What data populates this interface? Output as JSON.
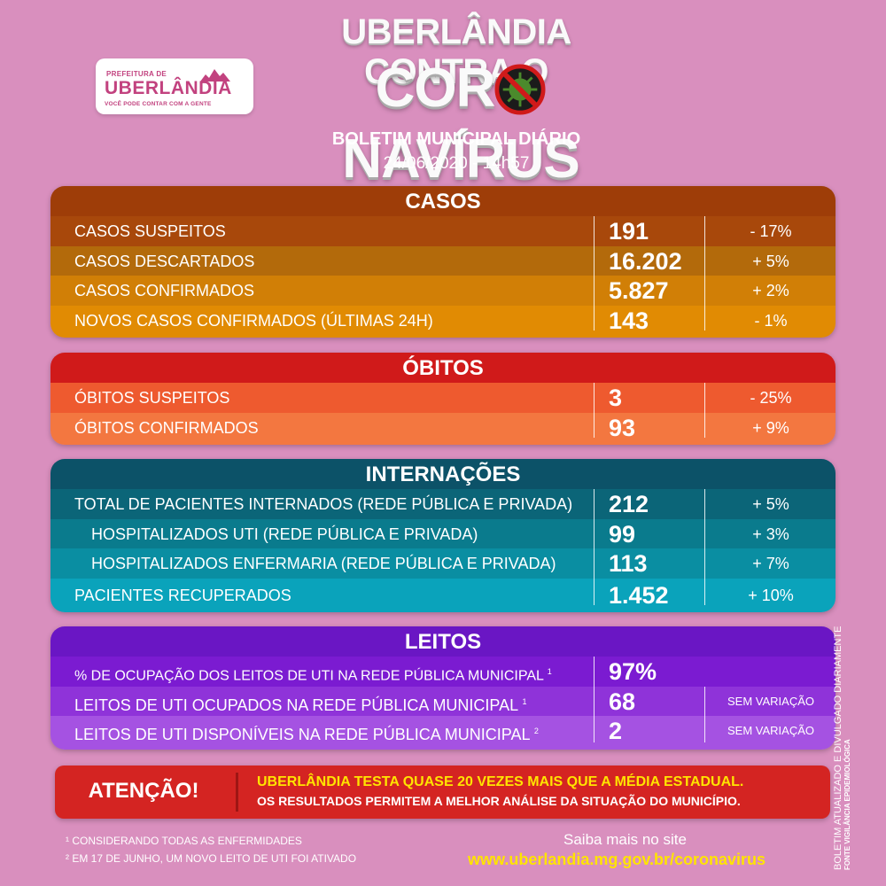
{
  "header": {
    "logo_line1": "PREFEITURA DE",
    "logo_line2": "UBERLÂNDIA",
    "logo_line3": "VOCÊ PODE CONTAR COM A GENTE",
    "title_line1": "UBERLÂNDIA CONTRA O",
    "title_line2_left": "COR",
    "title_line2_right": "NAVÍRUS",
    "subtitle": "BOLETIM MUNICIPAL DIÁRIO",
    "datetime": "24/06/2020 - 14h57"
  },
  "casos": {
    "title": "CASOS",
    "rows": [
      {
        "label": "CASOS SUSPEITOS",
        "value": "191",
        "variation": "- 17%"
      },
      {
        "label": "CASOS DESCARTADOS",
        "value": "16.202",
        "variation": "+ 5%"
      },
      {
        "label": "CASOS CONFIRMADOS",
        "value": "5.827",
        "variation": "+ 2%"
      },
      {
        "label": "NOVOS CASOS CONFIRMADOS (ÚLTIMAS 24H)",
        "value": "143",
        "variation": "- 1%"
      }
    ]
  },
  "obitos": {
    "title": "ÓBITOS",
    "rows": [
      {
        "label": "ÓBITOS SUSPEITOS",
        "value": "3",
        "variation": "- 25%"
      },
      {
        "label": "ÓBITOS CONFIRMADOS",
        "value": "93",
        "variation": "+ 9%"
      }
    ]
  },
  "internacoes": {
    "title": "INTERNAÇÕES",
    "rows": [
      {
        "label": "TOTAL DE PACIENTES INTERNADOS (REDE PÚBLICA E PRIVADA)",
        "value": "212",
        "variation": "+ 5%"
      },
      {
        "label": "HOSPITALIZADOS UTI (REDE PÚBLICA E PRIVADA)",
        "value": "99",
        "variation": "+ 3%"
      },
      {
        "label": "HOSPITALIZADOS ENFERMARIA (REDE PÚBLICA E PRIVADA)",
        "value": "113",
        "variation": "+ 7%"
      },
      {
        "label": "PACIENTES RECUPERADOS",
        "value": "1.452",
        "variation": "+ 10%"
      }
    ]
  },
  "leitos": {
    "title": "LEITOS",
    "rows": [
      {
        "label": "% DE OCUPAÇÃO DOS LEITOS DE UTI NA REDE PÚBLICA MUNICIPAL",
        "sup": "1",
        "value": "97%",
        "variation": ""
      },
      {
        "label": "LEITOS DE UTI OCUPADOS NA REDE PÚBLICA MUNICIPAL",
        "sup": "1",
        "value": "68",
        "variation": "SEM VARIAÇÃO"
      },
      {
        "label": "LEITOS DE UTI DISPONÍVEIS NA REDE PÚBLICA MUNICIPAL",
        "sup": "2",
        "value": "2",
        "variation": "SEM VARIAÇÃO"
      }
    ]
  },
  "attention": {
    "label": "ATENÇÃO!",
    "line1": "UBERLÂNDIA TESTA QUASE 20 VEZES MAIS QUE A MÉDIA ESTADUAL.",
    "line2": "OS RESULTADOS PERMITEM A MELHOR ANÁLISE DA SITUAÇÃO DO MUNICÍPIO."
  },
  "footnotes": {
    "note1": "¹ CONSIDERANDO TODAS AS ENFERMIDADES",
    "note2": "² EM 17 DE JUNHO, UM NOVO LEITO DE UTI FOI ATIVADO"
  },
  "site": {
    "line1": "Saiba mais no site",
    "url": "www.uberlandia.mg.gov.br/coronavirus"
  },
  "side_text": {
    "line1": "BOLETIM ATUALIZADO  E DIVULGADO DIARIAMENTE",
    "line2": "FONTE VIGILÂNCIA EPIDEMIOLÓGICA"
  },
  "colors": {
    "background": "#d98fbe",
    "casos": [
      "#9e3d08",
      "#a8480b",
      "#b36a0b",
      "#d17f06",
      "#e18b03"
    ],
    "obitos": [
      "#d01a1a",
      "#ee5a2f",
      "#f37740"
    ],
    "internacoes": [
      "#0c5268",
      "#0b6578",
      "#0a7b8d",
      "#0a8ea2",
      "#0aa3bb"
    ],
    "leitos": [
      "#6a16c4",
      "#7b1bd1",
      "#8f33d9",
      "#a552e2"
    ],
    "attention": "#d42422",
    "highlight_yellow": "#ffe400"
  }
}
